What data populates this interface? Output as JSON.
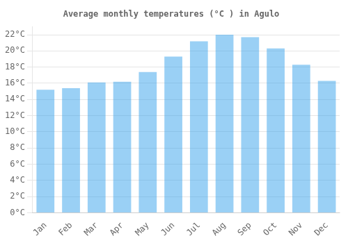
{
  "chart_data": {
    "type": "bar",
    "title": "Average monthly temperatures (°C ) in Agulo",
    "categories": [
      "Jan",
      "Feb",
      "Mar",
      "Apr",
      "May",
      "Jun",
      "Jul",
      "Aug",
      "Sep",
      "Oct",
      "Nov",
      "Dec"
    ],
    "values": [
      15.2,
      15.4,
      16.1,
      16.2,
      17.4,
      19.3,
      21.2,
      22.0,
      21.7,
      20.3,
      18.3,
      16.3
    ],
    "ylim": [
      0,
      23
    ],
    "yticks": [
      {
        "value": 0,
        "label": "0°C"
      },
      {
        "value": 2,
        "label": "2°C"
      },
      {
        "value": 4,
        "label": "4°C"
      },
      {
        "value": 6,
        "label": "6°C"
      },
      {
        "value": 8,
        "label": "8°C"
      },
      {
        "value": 10,
        "label": "10°C"
      },
      {
        "value": 12,
        "label": "12°C"
      },
      {
        "value": 14,
        "label": "14°C"
      },
      {
        "value": 16,
        "label": "16°C"
      },
      {
        "value": 18,
        "label": "18°C"
      },
      {
        "value": 20,
        "label": "20°C"
      },
      {
        "value": 22,
        "label": "22°C"
      }
    ],
    "grid": true
  }
}
